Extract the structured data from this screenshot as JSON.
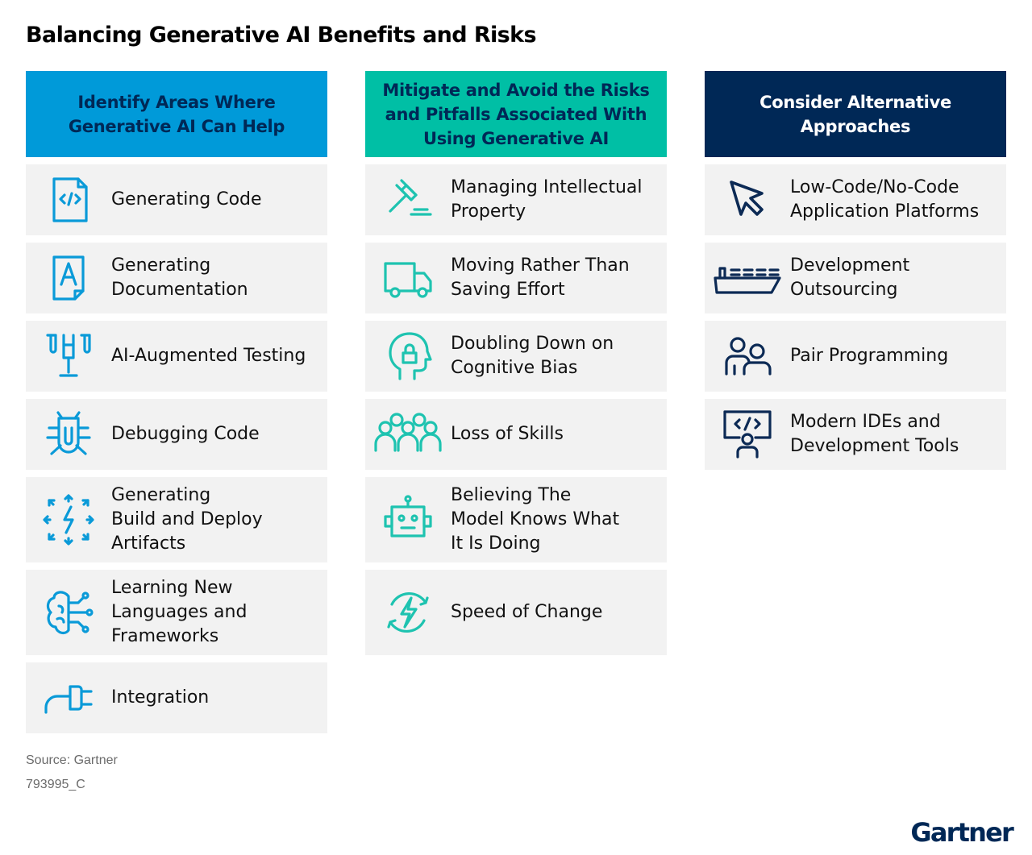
{
  "title": "Balancing Generative AI Benefits and Risks",
  "columns": [
    {
      "header": "Identify Areas Where\nGenerative AI Can Help",
      "accent": "#009ad9",
      "items": [
        {
          "label": "Generating Code",
          "icon": "code-document-icon"
        },
        {
          "label": "Generating\nDocumentation",
          "icon": "text-document-icon"
        },
        {
          "label": "AI-Augmented Testing",
          "icon": "test-tubes-icon"
        },
        {
          "label": "Debugging Code",
          "icon": "bug-icon"
        },
        {
          "label": "Generating\nBuild and Deploy\nArtifacts",
          "icon": "deploy-arrows-icon"
        },
        {
          "label": "Learning New\nLanguages and\nFrameworks",
          "icon": "brain-circuit-icon"
        },
        {
          "label": "Integration",
          "icon": "plug-icon"
        }
      ]
    },
    {
      "header": "Mitigate and Avoid the Risks\nand Pitfalls Associated With\nUsing Generative AI",
      "accent": "#00bfa5",
      "items": [
        {
          "label": "Managing Intellectual\nProperty",
          "icon": "gavel-icon"
        },
        {
          "label": "Moving Rather Than\nSaving Effort",
          "icon": "truck-icon"
        },
        {
          "label": "Doubling Down on\nCognitive Bias",
          "icon": "head-lock-icon"
        },
        {
          "label": "Loss of Skills",
          "icon": "people-group-icon"
        },
        {
          "label": "Believing The\nModel Knows What\nIt Is Doing",
          "icon": "robot-icon"
        },
        {
          "label": "Speed of Change",
          "icon": "lightning-cycle-icon"
        }
      ]
    },
    {
      "header": "Consider Alternative\nApproaches",
      "accent": "#002856",
      "items": [
        {
          "label": "Low-Code/No-Code\nApplication Platforms",
          "icon": "cursor-icon"
        },
        {
          "label": "Development\nOutsourcing",
          "icon": "ship-icon"
        },
        {
          "label": "Pair Programming",
          "icon": "pair-people-icon"
        },
        {
          "label": "Modern IDEs and\nDevelopment Tools",
          "icon": "ide-presenter-icon"
        }
      ]
    }
  ],
  "footer": {
    "source": "Source: Gartner",
    "code": "793995_C",
    "logo": "Gartner"
  }
}
